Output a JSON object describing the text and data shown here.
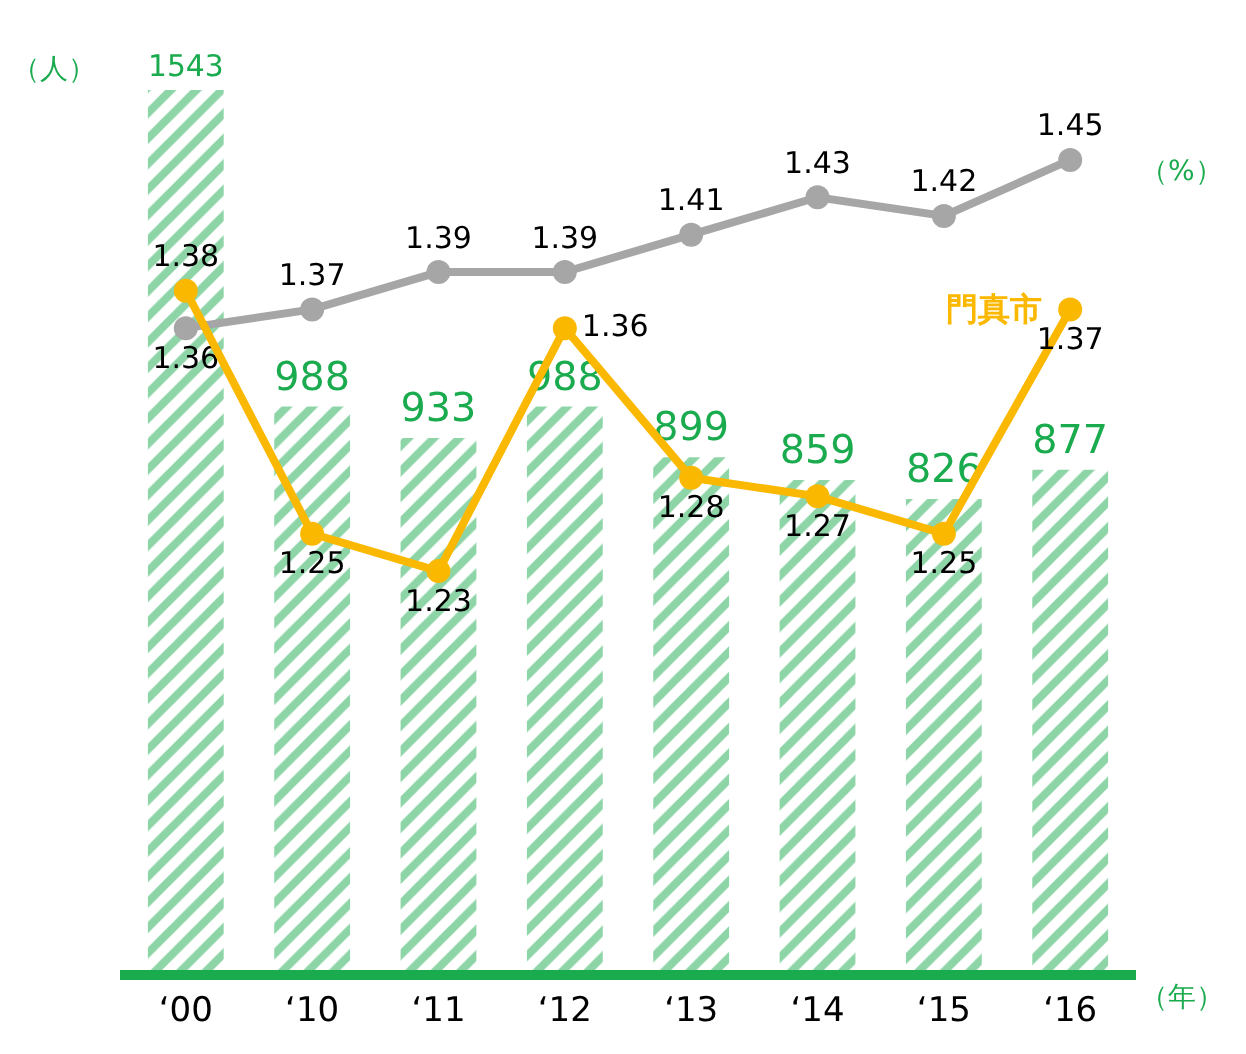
{
  "chart_data": {
    "type": "bar",
    "categories": [
      "‘00",
      "‘10",
      "‘11",
      "‘12",
      "‘13",
      "‘14",
      "‘15",
      "‘16"
    ],
    "ylabel": "（人）",
    "y2label": "（%）",
    "xlabel": "（年）",
    "series": [
      {
        "color": "#1bab4f",
        "values": [
          1543,
          988,
          933,
          988,
          899,
          859,
          826,
          877
        ]
      },
      {
        "type": "line",
        "axis": "y2",
        "color": "#a6a6a6",
        "values": [
          1.36,
          1.37,
          1.39,
          1.39,
          1.41,
          1.43,
          1.42,
          1.45
        ]
      },
      {
        "type": "line",
        "axis": "y2",
        "name": "門真市",
        "color": "#fbb800",
        "values": [
          1.38,
          1.25,
          1.23,
          1.36,
          1.28,
          1.27,
          1.25,
          1.37
        ]
      }
    ],
    "data_labels": true,
    "marker": "circle",
    "line_style": "solid",
    "legend": false,
    "tick_labels": "x"
  }
}
